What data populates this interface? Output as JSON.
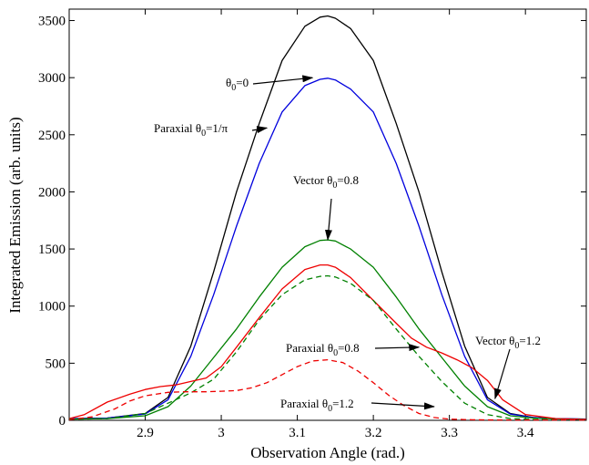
{
  "chart_data": {
    "type": "line",
    "title": "",
    "xlabel": "Observation Angle (rad.)",
    "ylabel": "Integrated Emission (arb. units)",
    "xlim": [
      2.8,
      3.48
    ],
    "ylim": [
      0,
      3600
    ],
    "x_ticks": [
      "2.9",
      "3",
      "3.1",
      "3.2",
      "3.3",
      "3.4"
    ],
    "y_ticks": [
      "0",
      "500",
      "1000",
      "1500",
      "2000",
      "2500",
      "3000",
      "3500"
    ],
    "grid": false,
    "legend": "none",
    "series": [
      {
        "color": "#000000",
        "style": "solid",
        "x": [
          2.8,
          2.85,
          2.9,
          2.93,
          2.96,
          2.99,
          3.02,
          3.05,
          3.08,
          3.11,
          3.13,
          3.14,
          3.15,
          3.17,
          3.2,
          3.23,
          3.26,
          3.29,
          3.32,
          3.35,
          3.38,
          3.41,
          3.44,
          3.48
        ],
        "y": [
          15,
          20,
          60,
          200,
          650,
          1300,
          2000,
          2600,
          3150,
          3450,
          3530,
          3540,
          3520,
          3430,
          3150,
          2600,
          2000,
          1300,
          650,
          200,
          60,
          25,
          15,
          10
        ]
      },
      {
        "color": "#0000dd",
        "style": "solid",
        "x": [
          2.8,
          2.85,
          2.9,
          2.93,
          2.96,
          2.99,
          3.02,
          3.05,
          3.08,
          3.11,
          3.13,
          3.14,
          3.15,
          3.17,
          3.2,
          3.23,
          3.26,
          3.29,
          3.32,
          3.35,
          3.38,
          3.41,
          3.44,
          3.48
        ],
        "y": [
          15,
          20,
          55,
          180,
          560,
          1100,
          1700,
          2250,
          2700,
          2930,
          2985,
          2995,
          2980,
          2900,
          2700,
          2250,
          1700,
          1100,
          560,
          180,
          55,
          25,
          15,
          10
        ]
      },
      {
        "color": "#008000",
        "style": "solid",
        "x": [
          2.8,
          2.85,
          2.9,
          2.93,
          2.96,
          2.99,
          3.02,
          3.05,
          3.08,
          3.11,
          3.13,
          3.14,
          3.15,
          3.17,
          3.2,
          3.23,
          3.26,
          3.29,
          3.32,
          3.35,
          3.38,
          3.41,
          3.44,
          3.48
        ],
        "y": [
          10,
          15,
          40,
          120,
          300,
          550,
          800,
          1080,
          1340,
          1520,
          1575,
          1580,
          1570,
          1500,
          1340,
          1080,
          800,
          550,
          300,
          120,
          40,
          20,
          12,
          8
        ]
      },
      {
        "color": "#ee0000",
        "style": "solid",
        "x": [
          2.8,
          2.82,
          2.85,
          2.88,
          2.9,
          2.92,
          2.94,
          2.96,
          2.98,
          3.0,
          3.02,
          3.05,
          3.08,
          3.11,
          3.13,
          3.14,
          3.15,
          3.17,
          3.2,
          3.23,
          3.25,
          3.27,
          3.29,
          3.31,
          3.33,
          3.35,
          3.37,
          3.4,
          3.44,
          3.48
        ],
        "y": [
          15,
          50,
          160,
          230,
          270,
          295,
          310,
          340,
          370,
          470,
          640,
          900,
          1150,
          1320,
          1360,
          1360,
          1340,
          1250,
          1050,
          850,
          720,
          640,
          590,
          530,
          460,
          350,
          180,
          50,
          15,
          8
        ]
      },
      {
        "color": "#008000",
        "style": "dashed",
        "x": [
          2.8,
          2.85,
          2.9,
          2.93,
          2.96,
          2.99,
          3.02,
          3.05,
          3.08,
          3.11,
          3.13,
          3.14,
          3.15,
          3.17,
          3.2,
          3.23,
          3.26,
          3.29,
          3.32,
          3.35,
          3.38,
          3.41,
          3.44,
          3.48
        ],
        "y": [
          10,
          15,
          60,
          150,
          240,
          360,
          600,
          880,
          1100,
          1230,
          1260,
          1265,
          1255,
          1200,
          1050,
          800,
          560,
          340,
          150,
          50,
          15,
          8,
          5,
          5
        ]
      },
      {
        "color": "#ee0000",
        "style": "dashed",
        "x": [
          2.8,
          2.83,
          2.86,
          2.88,
          2.9,
          2.93,
          2.95,
          2.98,
          3.0,
          3.02,
          3.04,
          3.06,
          3.08,
          3.1,
          3.12,
          3.14,
          3.16,
          3.18,
          3.2,
          3.22,
          3.24,
          3.26,
          3.28,
          3.3,
          3.33,
          3.36,
          3.4,
          3.48
        ],
        "y": [
          5,
          30,
          100,
          170,
          215,
          245,
          250,
          250,
          255,
          260,
          285,
          330,
          400,
          470,
          520,
          530,
          505,
          430,
          330,
          220,
          130,
          60,
          25,
          10,
          5,
          3,
          3,
          3
        ]
      }
    ],
    "annotations": [
      {
        "label": "θ",
        "sub": "0",
        "rest": "=0",
        "to": [
          3.12,
          3000
        ]
      },
      {
        "label": "Paraxial θ",
        "sub": "0",
        "rest": "=1/π",
        "to": [
          3.06,
          2560
        ]
      },
      {
        "label": "Vector θ",
        "sub": "0",
        "rest": "=0.8",
        "to": [
          3.14,
          1580
        ]
      },
      {
        "label": "Paraxial θ",
        "sub": "0",
        "rest": "=0.8",
        "to": [
          3.26,
          640
        ]
      },
      {
        "label": "Vector θ",
        "sub": "0",
        "rest": "=1.2",
        "to": [
          3.36,
          190
        ]
      },
      {
        "label": "Paraxial θ",
        "sub": "0",
        "rest": "=1.2",
        "to": [
          3.28,
          120
        ]
      }
    ]
  }
}
